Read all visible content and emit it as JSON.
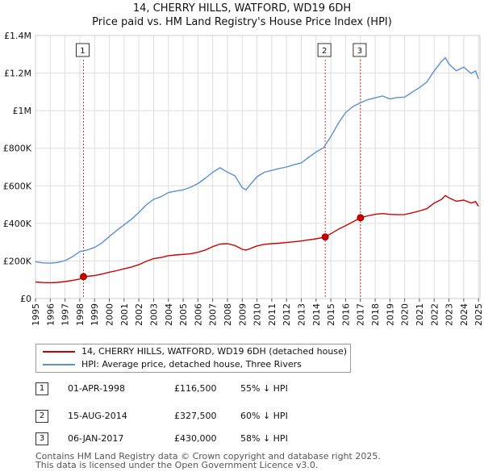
{
  "chart_data": {
    "type": "line",
    "title_line1": "14, CHERRY HILLS, WATFORD, WD19 6DH",
    "title_line2": "Price paid vs. HM Land Registry's House Price Index (HPI)",
    "xlim": [
      1995.0,
      2025.1
    ],
    "ylim": [
      0,
      1400000
    ],
    "y_ticks": [
      {
        "value": 0,
        "label": "£0"
      },
      {
        "value": 200000,
        "label": "£200K"
      },
      {
        "value": 400000,
        "label": "£400K"
      },
      {
        "value": 600000,
        "label": "£600K"
      },
      {
        "value": 800000,
        "label": "£800K"
      },
      {
        "value": 1000000,
        "label": "£1M"
      },
      {
        "value": 1200000,
        "label": "£1.2M"
      },
      {
        "value": 1400000,
        "label": "£1.4M"
      }
    ],
    "x_ticks": [
      "1995",
      "1996",
      "1997",
      "1998",
      "1999",
      "2000",
      "2001",
      "2002",
      "2003",
      "2004",
      "2005",
      "2006",
      "2007",
      "2008",
      "2009",
      "2010",
      "2011",
      "2012",
      "2013",
      "2014",
      "2015",
      "2016",
      "2017",
      "2018",
      "2019",
      "2020",
      "2021",
      "2022",
      "2023",
      "2024",
      "2025"
    ],
    "grid": true,
    "series": [
      {
        "name": "14, CHERRY HILLS, WATFORD, WD19 6DH (detached house)",
        "color": "#cc0000",
        "x": [
          1995.0,
          1995.5,
          1996.0,
          1996.5,
          1997.0,
          1997.5,
          1998.0,
          1998.25,
          1998.5,
          1999.0,
          1999.5,
          2000.0,
          2000.5,
          2001.0,
          2001.5,
          2002.0,
          2002.5,
          2003.0,
          2003.5,
          2004.0,
          2004.5,
          2005.0,
          2005.5,
          2006.0,
          2006.5,
          2007.0,
          2007.5,
          2008.0,
          2008.5,
          2009.0,
          2009.25,
          2009.5,
          2010.0,
          2010.5,
          2011.0,
          2011.5,
          2012.0,
          2012.5,
          2013.0,
          2013.5,
          2014.0,
          2014.5,
          2014.62,
          2015.0,
          2015.5,
          2016.0,
          2016.5,
          2017.0,
          2017.5,
          2018.0,
          2018.5,
          2019.0,
          2019.5,
          2020.0,
          2020.5,
          2021.0,
          2021.5,
          2022.0,
          2022.5,
          2022.75,
          2023.0,
          2023.5,
          2024.0,
          2024.5,
          2024.8,
          2025.0
        ],
        "values": [
          88000,
          85000,
          84000,
          86000,
          90000,
          96000,
          104000,
          116500,
          118000,
          122000,
          130000,
          140000,
          148000,
          158000,
          168000,
          180000,
          198000,
          212000,
          218000,
          228000,
          232000,
          235000,
          238000,
          246000,
          258000,
          276000,
          290000,
          292000,
          282000,
          262000,
          258000,
          264000,
          280000,
          288000,
          292000,
          294000,
          298000,
          302000,
          306000,
          312000,
          318000,
          325000,
          327500,
          345000,
          368000,
          388000,
          408000,
          430000,
          440000,
          448000,
          452000,
          448000,
          446000,
          447000,
          456000,
          466000,
          478000,
          508000,
          528000,
          548000,
          536000,
          518000,
          524000,
          508000,
          516000,
          490000
        ]
      },
      {
        "name": "HPI: Average price, detached house, Three Rivers",
        "color": "#5b8fd0",
        "x": [
          1995.0,
          1995.5,
          1996.0,
          1996.5,
          1997.0,
          1997.5,
          1998.0,
          1998.5,
          1999.0,
          1999.5,
          2000.0,
          2000.5,
          2001.0,
          2001.5,
          2002.0,
          2002.5,
          2003.0,
          2003.5,
          2004.0,
          2004.5,
          2005.0,
          2005.5,
          2006.0,
          2006.5,
          2007.0,
          2007.5,
          2008.0,
          2008.5,
          2009.0,
          2009.25,
          2009.5,
          2010.0,
          2010.5,
          2011.0,
          2011.5,
          2012.0,
          2012.5,
          2013.0,
          2013.5,
          2014.0,
          2014.5,
          2015.0,
          2015.5,
          2016.0,
          2016.5,
          2017.0,
          2017.5,
          2018.0,
          2018.5,
          2019.0,
          2019.5,
          2020.0,
          2020.5,
          2021.0,
          2021.5,
          2022.0,
          2022.5,
          2022.75,
          2023.0,
          2023.5,
          2024.0,
          2024.5,
          2024.8,
          2025.0
        ],
        "values": [
          196000,
          190000,
          188000,
          192000,
          202000,
          222000,
          250000,
          258000,
          272000,
          296000,
          330000,
          362000,
          392000,
          422000,
          458000,
          498000,
          528000,
          542000,
          564000,
          572000,
          578000,
          592000,
          612000,
          640000,
          672000,
          696000,
          672000,
          654000,
          590000,
          578000,
          602000,
          648000,
          672000,
          682000,
          692000,
          700000,
          712000,
          722000,
          752000,
          780000,
          802000,
          862000,
          932000,
          990000,
          1022000,
          1042000,
          1058000,
          1068000,
          1078000,
          1062000,
          1070000,
          1072000,
          1098000,
          1122000,
          1152000,
          1212000,
          1262000,
          1282000,
          1248000,
          1212000,
          1232000,
          1198000,
          1212000,
          1168000
        ]
      }
    ],
    "sales": [
      {
        "label": "1",
        "x": 1998.25,
        "value": 116500
      },
      {
        "label": "2",
        "x": 2014.62,
        "value": 327500
      },
      {
        "label": "3",
        "x": 2017.01,
        "value": 430000
      }
    ],
    "legend": [
      {
        "label": "14, CHERRY HILLS, WATFORD, WD19 6DH (detached house)",
        "color": "#cc0000"
      },
      {
        "label": "HPI: Average price, detached house, Three Rivers",
        "color": "#5b8fd0"
      }
    ],
    "annotations": [
      {
        "num": "1",
        "date": "01-APR-1998",
        "price": "£116,500",
        "hpi": "55% ↓ HPI"
      },
      {
        "num": "2",
        "date": "15-AUG-2014",
        "price": "£327,500",
        "hpi": "60% ↓ HPI"
      },
      {
        "num": "3",
        "date": "06-JAN-2017",
        "price": "£430,000",
        "hpi": "58% ↓ HPI"
      }
    ]
  },
  "footer": {
    "line1": "Contains HM Land Registry data © Crown copyright and database right 2025.",
    "line2": "This data is licensed under the Open Government Licence v3.0."
  }
}
